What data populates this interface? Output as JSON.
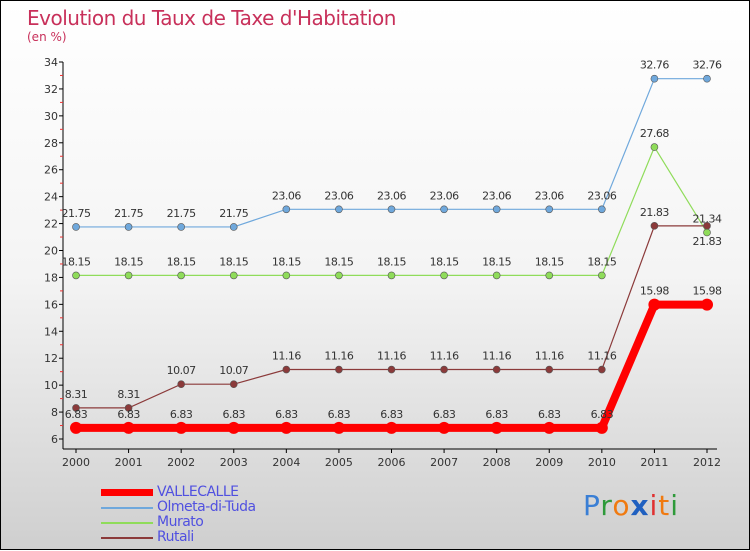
{
  "chart_data": {
    "type": "line",
    "title": "Evolution du Taux de Taxe d'Habitation",
    "subtitle": "(en %)",
    "xlabel": "",
    "ylabel": "(en %)",
    "ylim": [
      6,
      34
    ],
    "yticks": [
      6,
      8,
      10,
      12,
      14,
      16,
      18,
      20,
      22,
      24,
      26,
      28,
      30,
      32,
      34
    ],
    "x": [
      "2000",
      "2001",
      "2002",
      "2003",
      "2004",
      "2005",
      "2006",
      "2007",
      "2008",
      "2009",
      "2010",
      "2011",
      "2012"
    ],
    "legend_position": "bottom-left",
    "series": [
      {
        "name": "VALLECALLE",
        "color": "#ff0000",
        "values": [
          6.83,
          6.83,
          6.83,
          6.83,
          6.83,
          6.83,
          6.83,
          6.83,
          6.83,
          6.83,
          6.83,
          15.98,
          15.98
        ]
      },
      {
        "name": "Olmeta-di-Tuda",
        "color": "#6fa8dc",
        "values": [
          21.75,
          21.75,
          21.75,
          21.75,
          23.06,
          23.06,
          23.06,
          23.06,
          23.06,
          23.06,
          23.06,
          32.76,
          32.76
        ]
      },
      {
        "name": "Murato",
        "color": "#8fdc5a",
        "values": [
          18.15,
          18.15,
          18.15,
          18.15,
          18.15,
          18.15,
          18.15,
          18.15,
          18.15,
          18.15,
          18.15,
          27.68,
          21.34
        ]
      },
      {
        "name": "Rutali",
        "color": "#8b3a3a",
        "values": [
          8.31,
          8.31,
          10.07,
          10.07,
          11.16,
          11.16,
          11.16,
          11.16,
          11.16,
          11.16,
          11.16,
          21.83,
          21.83
        ]
      }
    ]
  },
  "logo": {
    "text": "Proxiti",
    "letters": [
      "P",
      "r",
      "o",
      "x",
      "i",
      "t",
      "i"
    ],
    "colors": [
      "#3a7fd5",
      "#2e9a3a",
      "#f07a10",
      "#2060c0",
      "#e03030",
      "#f07a10",
      "#2e9a3a"
    ]
  }
}
